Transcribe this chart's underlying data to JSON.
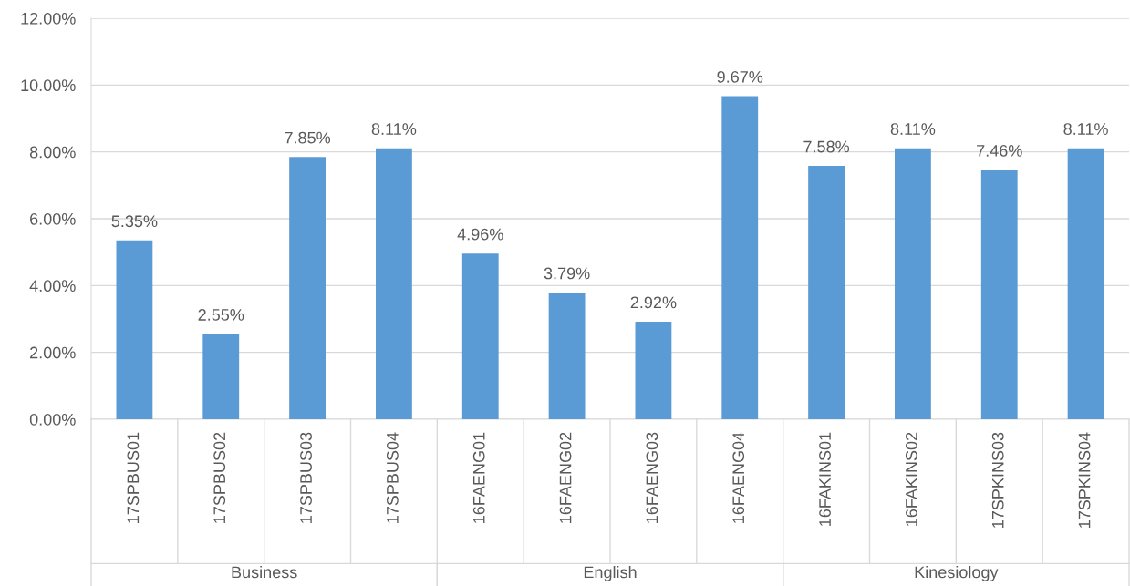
{
  "chart_data": {
    "type": "bar",
    "categories": [
      "17SPBUS01",
      "17SPBUS02",
      "17SPBUS03",
      "17SPBUS04",
      "16FAENG01",
      "16FAENG02",
      "16FAENG03",
      "16FAENG04",
      "16FAKINS01",
      "16FAKINS02",
      "17SPKINS03",
      "17SPKINS04"
    ],
    "values": [
      5.35,
      2.55,
      7.85,
      8.11,
      4.96,
      3.79,
      2.92,
      9.67,
      7.58,
      8.11,
      7.46,
      8.11
    ],
    "value_labels": [
      "5.35%",
      "2.55%",
      "7.85%",
      "8.11%",
      "4.96%",
      "3.79%",
      "2.92%",
      "9.67%",
      "7.58%",
      "8.11%",
      "7.46%",
      "8.11%"
    ],
    "color": "#5b9bd5",
    "annotations": [
      "Business",
      "English",
      "Kinesiology"
    ],
    "ylim": [
      0,
      12
    ],
    "yticks": [
      {
        "value": 0,
        "label": "0.00%"
      },
      {
        "value": 2,
        "label": "2.00%"
      },
      {
        "value": 4,
        "label": "4.00%"
      },
      {
        "value": 6,
        "label": "6.00%"
      },
      {
        "value": 8,
        "label": "8.00%"
      },
      {
        "value": 10,
        "label": "10.00%"
      },
      {
        "value": 12,
        "label": "12.00%"
      }
    ],
    "grid": "y"
  }
}
